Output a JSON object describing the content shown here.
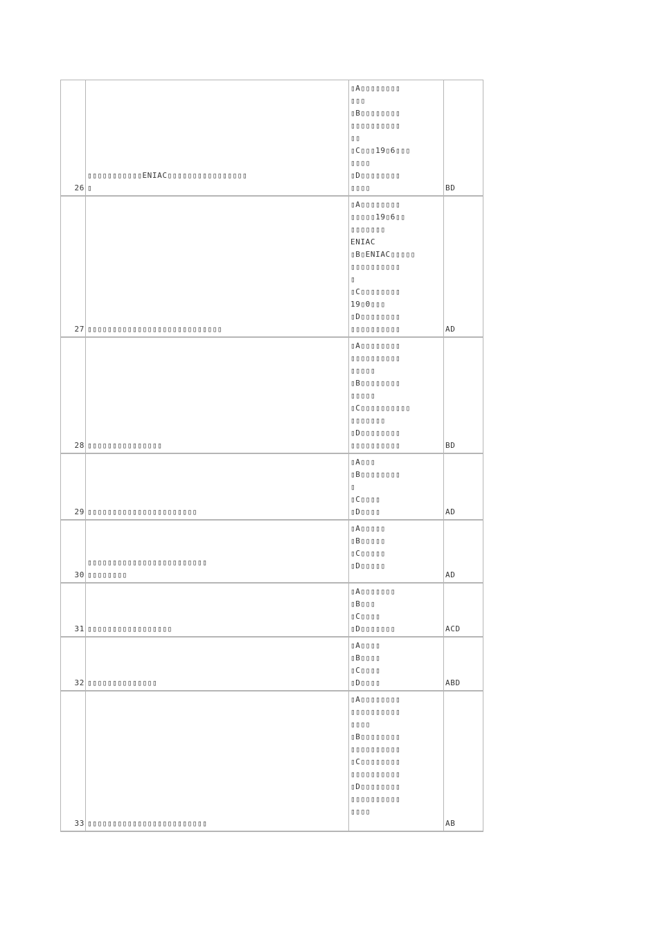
{
  "rows": [
    {
      "num": "26",
      "question": "▯▯▯▯▯▯▯▯▯▯▯ENIAC▯▯▯▯▯▯▯▯▯▯▯▯▯▯▯▯\n▯",
      "options": "▯A▯▯▯▯▯▯▯▯\n▯▯▯\n▯B▯▯▯▯▯▯▯▯\n▯▯▯▯▯▯▯▯▯▯\n▯▯\n▯C▯▯▯19▯6▯▯▯\n▯▯▯▯\n▯D▯▯▯▯▯▯▯▯\n▯▯▯▯",
      "answer": "BD"
    },
    {
      "num": "27",
      "question": "▯▯▯▯▯▯▯▯▯▯▯▯▯▯▯▯▯▯▯▯▯▯▯▯▯▯▯",
      "options": "▯A▯▯▯▯▯▯▯▯\n▯▯▯▯▯19▯6▯▯\n▯▯▯▯▯▯▯\nENIAC\n▯B▯ENIAC▯▯▯▯▯\n▯▯▯▯▯▯▯▯▯▯\n▯\n▯C▯▯▯▯▯▯▯▯\n19▯0▯▯▯\n▯D▯▯▯▯▯▯▯▯\n▯▯▯▯▯▯▯▯▯▯",
      "answer": "AD"
    },
    {
      "num": "28",
      "question": "▯▯▯▯▯▯▯▯▯▯▯▯▯▯▯",
      "options": "▯A▯▯▯▯▯▯▯▯\n▯▯▯▯▯▯▯▯▯▯\n▯▯▯▯▯\n▯B▯▯▯▯▯▯▯▯\n▯▯▯▯▯\n▯C▯▯▯▯▯▯▯▯▯▯\n▯▯▯▯▯▯▯\n▯D▯▯▯▯▯▯▯▯\n▯▯▯▯▯▯▯▯▯▯",
      "answer": "BD"
    },
    {
      "num": "29",
      "question": "▯▯▯▯▯▯▯▯▯▯▯▯▯▯▯▯▯▯▯▯▯▯",
      "options": "▯A▯▯▯\n▯B▯▯▯▯▯▯▯▯\n▯\n▯C▯▯▯▯\n▯D▯▯▯▯",
      "answer": "AD"
    },
    {
      "num": "30",
      "question": "▯▯▯▯▯▯▯▯▯▯▯▯▯▯▯▯▯▯▯▯▯▯▯▯\n▯▯▯▯▯▯▯▯",
      "options": "▯A▯▯▯▯▯\n▯B▯▯▯▯▯\n▯C▯▯▯▯▯\n▯D▯▯▯▯▯",
      "answer": "AD"
    },
    {
      "num": "31",
      "question": "▯▯▯▯▯▯▯▯▯▯▯▯▯▯▯▯▯",
      "options": "▯A▯▯▯▯▯▯▯\n▯B▯▯▯\n▯C▯▯▯▯\n▯D▯▯▯▯▯▯▯",
      "answer": "ACD"
    },
    {
      "num": "32",
      "question": "▯▯▯▯▯▯▯▯▯▯▯▯▯▯",
      "options": "▯A▯▯▯▯\n▯B▯▯▯▯\n▯C▯▯▯▯\n▯D▯▯▯▯",
      "answer": "ABD"
    },
    {
      "num": "33",
      "question": "▯▯▯▯▯▯▯▯▯▯▯▯▯▯▯▯▯▯▯▯▯▯▯▯",
      "options": "▯A▯▯▯▯▯▯▯▯\n▯▯▯▯▯▯▯▯▯▯\n▯▯▯▯\n▯B▯▯▯▯▯▯▯▯\n▯▯▯▯▯▯▯▯▯▯\n▯C▯▯▯▯▯▯▯▯\n▯▯▯▯▯▯▯▯▯▯\n▯D▯▯▯▯▯▯▯▯\n▯▯▯▯▯▯▯▯▯▯\n▯▯▯▯",
      "answer": "AB"
    }
  ]
}
